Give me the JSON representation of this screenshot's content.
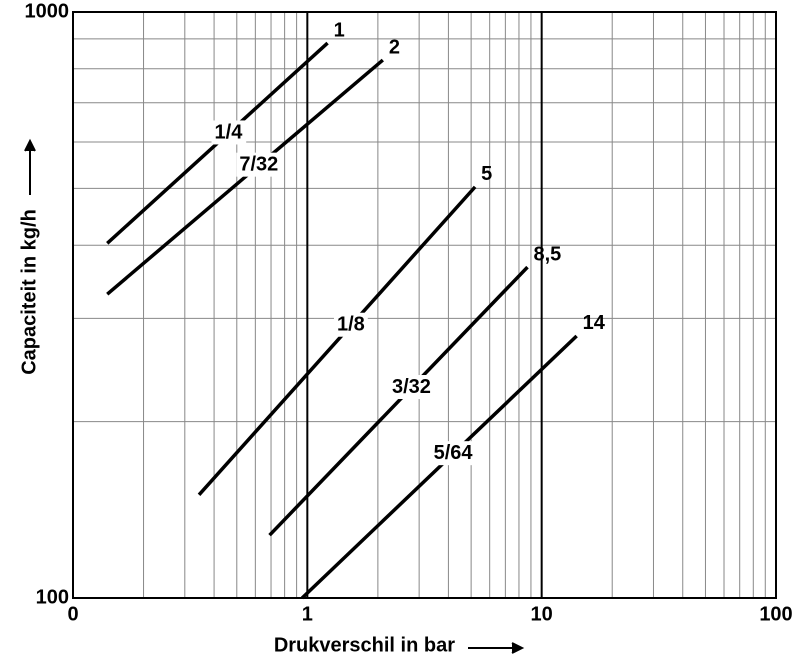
{
  "chart_data": {
    "type": "line",
    "x_label": "Drukverschil in bar",
    "y_label": "Capaciteit in kg/h",
    "log_x": true,
    "log_y": true,
    "grid": true,
    "xlim": [
      0.1,
      100
    ],
    "ylim": [
      100,
      1000
    ],
    "xticks": [
      {
        "value": 0.1,
        "label": "0"
      },
      1,
      10,
      100
    ],
    "yticks": [
      100,
      1000
    ],
    "series": [
      {
        "name": "1",
        "annotation": "1/4",
        "color": "#000000",
        "x": [
          0.14,
          1.22
        ],
        "values": [
          403,
          885
        ]
      },
      {
        "name": "2",
        "annotation": "7/32",
        "color": "#000000",
        "x": [
          0.14,
          2.1
        ],
        "values": [
          330,
          828
        ]
      },
      {
        "name": "5",
        "annotation": "1/8",
        "color": "#000000",
        "x": [
          0.345,
          5.2
        ],
        "values": [
          150,
          503
        ]
      },
      {
        "name": "8,5",
        "annotation": "3/32",
        "color": "#000000",
        "x": [
          0.69,
          8.7
        ],
        "values": [
          128,
          367
        ]
      },
      {
        "name": "14",
        "annotation": "5/64",
        "color": "#000000",
        "x": [
          0.95,
          14.1
        ],
        "values": [
          100,
          280
        ]
      }
    ]
  }
}
